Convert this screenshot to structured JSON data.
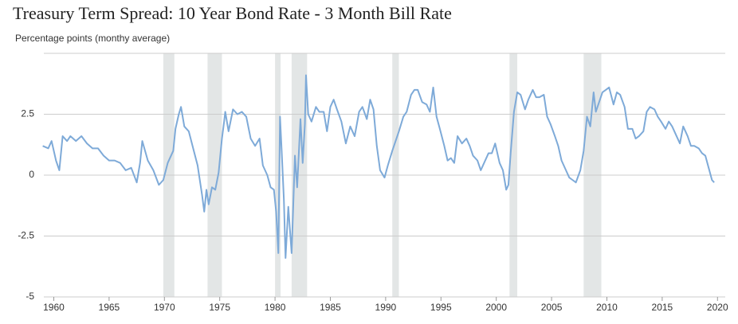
{
  "chart_data": {
    "type": "line",
    "title": "Treasury Term Spread: 10 Year Bond Rate - 3 Month Bill Rate",
    "subtitle": "Percentage points (monthy average)",
    "x": [
      1959.0,
      1959.5,
      1959.8,
      1960.2,
      1960.5,
      1960.8,
      1961.2,
      1961.5,
      1962.0,
      1962.5,
      1963.0,
      1963.5,
      1964.0,
      1964.5,
      1965.0,
      1965.5,
      1966.0,
      1966.5,
      1967.0,
      1967.5,
      1967.8,
      1968.0,
      1968.5,
      1969.0,
      1969.5,
      1969.9,
      1970.3,
      1970.8,
      1971.0,
      1971.3,
      1971.5,
      1971.8,
      1972.2,
      1972.6,
      1973.0,
      1973.4,
      1973.6,
      1973.8,
      1974.0,
      1974.3,
      1974.6,
      1974.9,
      1975.2,
      1975.4,
      1975.5,
      1975.8,
      1976.2,
      1976.6,
      1977.0,
      1977.4,
      1977.8,
      1978.2,
      1978.6,
      1978.9,
      1979.3,
      1979.6,
      1979.9,
      1980.1,
      1980.3,
      1980.45,
      1980.6,
      1980.8,
      1980.95,
      1981.2,
      1981.5,
      1981.8,
      1982.0,
      1982.3,
      1982.5,
      1982.7,
      1982.8,
      1983.0,
      1983.3,
      1983.7,
      1984.0,
      1984.4,
      1984.7,
      1985.0,
      1985.3,
      1985.6,
      1986.0,
      1986.4,
      1986.8,
      1987.2,
      1987.6,
      1987.9,
      1988.3,
      1988.6,
      1988.9,
      1989.2,
      1989.5,
      1989.9,
      1990.2,
      1990.6,
      1990.9,
      1991.2,
      1991.6,
      1991.9,
      1992.3,
      1992.6,
      1992.9,
      1993.3,
      1993.7,
      1994.0,
      1994.3,
      1994.6,
      1994.9,
      1995.3,
      1995.6,
      1995.9,
      1996.2,
      1996.5,
      1996.9,
      1997.3,
      1997.6,
      1997.9,
      1998.3,
      1998.6,
      1998.9,
      1999.3,
      1999.6,
      1999.9,
      2000.3,
      2000.6,
      2000.9,
      2001.1,
      2001.3,
      2001.6,
      2001.9,
      2002.2,
      2002.6,
      2002.9,
      2003.3,
      2003.6,
      2003.9,
      2004.3,
      2004.6,
      2004.9,
      2005.3,
      2005.6,
      2005.9,
      2006.3,
      2006.6,
      2006.9,
      2007.2,
      2007.6,
      2007.9,
      2008.2,
      2008.5,
      2008.8,
      2009.0,
      2009.3,
      2009.6,
      2009.9,
      2010.2,
      2010.6,
      2010.9,
      2011.2,
      2011.6,
      2011.9,
      2012.3,
      2012.6,
      2012.9,
      2013.3,
      2013.6,
      2013.9,
      2014.3,
      2014.6,
      2014.9,
      2015.3,
      2015.6,
      2015.9,
      2016.3,
      2016.6,
      2016.9,
      2017.3,
      2017.6,
      2017.9,
      2018.3,
      2018.6,
      2018.9,
      2019.2,
      2019.5,
      2019.7
    ],
    "series": [
      {
        "color": "#7eaad8",
        "values": [
          1.2,
          1.1,
          1.4,
          0.6,
          0.2,
          1.6,
          1.4,
          1.6,
          1.4,
          1.6,
          1.3,
          1.1,
          1.1,
          0.8,
          0.6,
          0.6,
          0.5,
          0.2,
          0.3,
          -0.3,
          0.5,
          1.4,
          0.6,
          0.2,
          -0.4,
          -0.2,
          0.5,
          1.0,
          1.9,
          2.5,
          2.8,
          2.0,
          1.8,
          1.1,
          0.4,
          -0.8,
          -1.5,
          -0.6,
          -1.2,
          -0.5,
          -0.6,
          0.1,
          1.5,
          2.2,
          2.6,
          1.8,
          2.7,
          2.5,
          2.6,
          2.4,
          1.5,
          1.2,
          1.5,
          0.4,
          0.0,
          -0.5,
          -0.6,
          -1.5,
          -3.2,
          2.4,
          1.0,
          -1.0,
          -3.4,
          -1.3,
          -3.2,
          0.8,
          -0.5,
          2.3,
          0.5,
          2.1,
          4.1,
          2.5,
          2.2,
          2.8,
          2.6,
          2.6,
          1.8,
          2.8,
          3.1,
          2.7,
          2.2,
          1.3,
          2.0,
          1.6,
          2.6,
          2.8,
          2.3,
          3.1,
          2.7,
          1.2,
          0.2,
          -0.1,
          0.4,
          1.0,
          1.4,
          1.8,
          2.4,
          2.6,
          3.3,
          3.5,
          3.5,
          3.0,
          2.9,
          2.6,
          3.6,
          2.4,
          1.9,
          1.2,
          0.6,
          0.7,
          0.5,
          1.6,
          1.3,
          1.5,
          1.2,
          0.8,
          0.6,
          0.2,
          0.5,
          0.9,
          0.9,
          1.3,
          0.5,
          0.2,
          -0.6,
          -0.4,
          0.9,
          2.6,
          3.4,
          3.3,
          2.7,
          3.1,
          3.5,
          3.2,
          3.2,
          3.3,
          2.4,
          2.1,
          1.6,
          1.2,
          0.6,
          0.2,
          -0.1,
          -0.2,
          -0.3,
          0.2,
          1.0,
          2.4,
          2.0,
          3.4,
          2.6,
          3.0,
          3.4,
          3.5,
          3.6,
          2.9,
          3.4,
          3.3,
          2.8,
          1.9,
          1.9,
          1.5,
          1.6,
          1.8,
          2.6,
          2.8,
          2.7,
          2.4,
          2.2,
          1.9,
          2.2,
          2.0,
          1.6,
          1.3,
          2.0,
          1.6,
          1.2,
          1.2,
          1.1,
          0.9,
          0.8,
          0.3,
          -0.2,
          -0.3
        ]
      }
    ],
    "recessions": [
      [
        1969.9,
        1970.9
      ],
      [
        1973.9,
        1975.2
      ],
      [
        1980.0,
        1980.5
      ],
      [
        1981.5,
        1982.9
      ],
      [
        1990.6,
        1991.2
      ],
      [
        2001.2,
        2001.9
      ],
      [
        2007.9,
        2009.5
      ]
    ],
    "recession_color": "#e3e6e6",
    "xlim": [
      1959.1,
      2020.7
    ],
    "xticks": [
      1960,
      1965,
      1970,
      1975,
      1980,
      1985,
      1990,
      1995,
      2000,
      2005,
      2010,
      2015,
      2020
    ],
    "ylim": [
      -5,
      5
    ],
    "yticks": [
      -5,
      -2.5,
      0,
      2.5
    ],
    "grid": true
  }
}
